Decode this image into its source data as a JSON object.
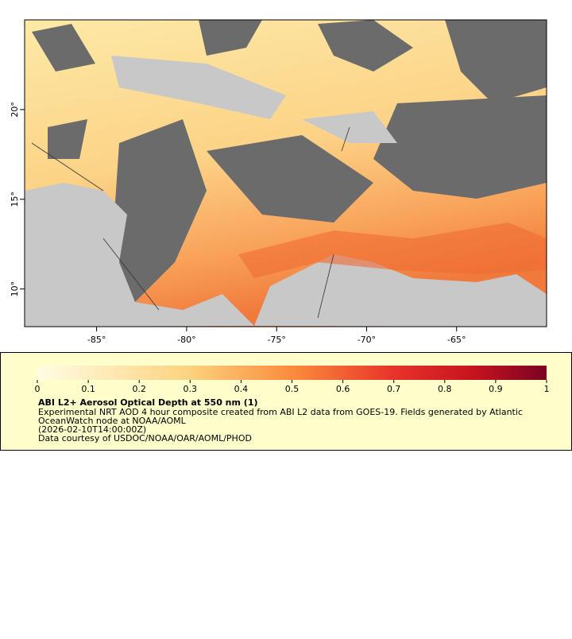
{
  "map": {
    "xlim": [
      -89,
      -60
    ],
    "ylim": [
      7.9,
      25
    ],
    "xticks": [
      {
        "value": -85,
        "label": "-85°"
      },
      {
        "value": -80,
        "label": "-80°"
      },
      {
        "value": -75,
        "label": "-75°"
      },
      {
        "value": -70,
        "label": "-70°"
      },
      {
        "value": -65,
        "label": "-65°"
      }
    ],
    "yticks": [
      {
        "value": 10,
        "label": "10°"
      },
      {
        "value": 15,
        "label": "15°"
      },
      {
        "value": 20,
        "label": "20°"
      }
    ]
  },
  "colorbar": {
    "range": [
      0,
      1
    ],
    "ticks": [
      0,
      0.1,
      0.2,
      0.3,
      0.4,
      0.5,
      0.6,
      0.7,
      0.8,
      0.9,
      1
    ]
  },
  "legend": {
    "title": "ABI L2+ Aerosol Optical Depth at 550 nm (1)",
    "lines": [
      "Experimental NRT AOD 4 hour composite created from ABI L2 data from GOES-19. Fields generated by Atlantic",
      "OceanWatch node at NOAA/AOML",
      "(2026-02-10T14:00:00Z)",
      "Data courtesy of USDOC/NOAA/OAR/AOML/PHOD"
    ]
  }
}
